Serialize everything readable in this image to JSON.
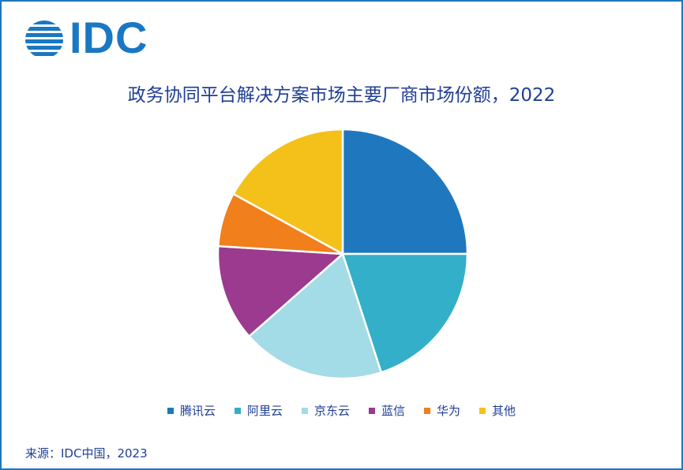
{
  "logo": {
    "text": "IDC",
    "color": "#1a77c2"
  },
  "chart_data": {
    "type": "pie",
    "title": "政务协同平台解决方案市场主要厂商市场份额，2022",
    "categories": [
      "腾讯云",
      "阿里云",
      "京东云",
      "蓝信",
      "华为",
      "其他"
    ],
    "values": [
      25,
      20,
      18.5,
      12.5,
      7,
      17
    ],
    "colors": [
      "#1f78be",
      "#33afc9",
      "#a3dbe6",
      "#9b3a8e",
      "#f07f1c",
      "#f4c11a"
    ],
    "legend_position": "bottom"
  },
  "source": "来源：IDC中国，2023"
}
